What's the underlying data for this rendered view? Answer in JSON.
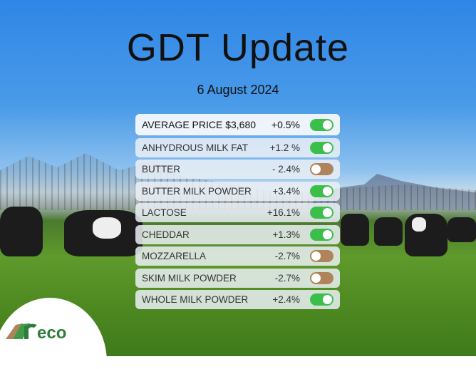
{
  "title": "GDT Update",
  "date": "6 August 2024",
  "colors": {
    "up": "#3cbf4a",
    "down": "#b0845a"
  },
  "rows": [
    {
      "label": "AVERAGE PRICE $3,680",
      "change": "+0.5%",
      "direction": "up"
    },
    {
      "label": "ANHYDROUS MILK FAT",
      "change": "+1.2 %",
      "direction": "up"
    },
    {
      "label": "BUTTER",
      "change": "- 2.4%",
      "direction": "down"
    },
    {
      "label": "BUTTER MILK POWDER",
      "change": "+3.4%",
      "direction": "up"
    },
    {
      "label": "LACTOSE",
      "change": "+16.1%",
      "direction": "up"
    },
    {
      "label": "CHEDDAR",
      "change": "+1.3%",
      "direction": "up"
    },
    {
      "label": "MOZZARELLA",
      "change": "-2.7%",
      "direction": "down"
    },
    {
      "label": "SKIM MILK POWDER",
      "change": "-2.7%",
      "direction": "down"
    },
    {
      "label": "WHOLE MILK POWDER",
      "change": "+2.4%",
      "direction": "up"
    }
  ],
  "logo": {
    "text": "reco"
  }
}
